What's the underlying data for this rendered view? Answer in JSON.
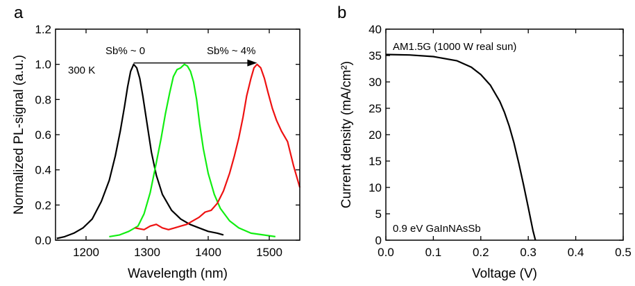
{
  "chart_data": [
    {
      "panel": "a",
      "type": "line",
      "xlabel": "Wavelength (nm)",
      "ylabel": "Normalized PL-signal (a.u.)",
      "xlim": [
        1150,
        1550
      ],
      "ylim": [
        0.0,
        1.2
      ],
      "xticks": [
        1200,
        1300,
        1400,
        1500
      ],
      "xtick_labels": [
        "1200",
        "1300",
        "1400",
        "1500"
      ],
      "yticks": [
        0.0,
        0.2,
        0.4,
        0.6,
        0.8,
        1.0,
        1.2
      ],
      "ytick_labels": [
        "0.0",
        "0.2",
        "0.4",
        "0.6",
        "0.8",
        "1.0",
        "1.2"
      ],
      "grid": false,
      "annotations": {
        "temperature": "300 K",
        "low_sb": "Sb% ~ 0",
        "high_sb": "Sb% ~ 4%"
      },
      "arrow": {
        "x": [
          1278,
          1480
        ],
        "y": 1.0
      },
      "series": [
        {
          "color": "#000000",
          "x": [
            1152,
            1165,
            1180,
            1195,
            1210,
            1225,
            1238,
            1248,
            1256,
            1263,
            1268,
            1273,
            1278,
            1283,
            1288,
            1293,
            1300,
            1307,
            1315,
            1325,
            1340,
            1355,
            1370,
            1385,
            1400,
            1415,
            1425
          ],
          "y": [
            0.01,
            0.02,
            0.04,
            0.07,
            0.12,
            0.22,
            0.34,
            0.48,
            0.62,
            0.76,
            0.87,
            0.96,
            1.0,
            0.98,
            0.92,
            0.82,
            0.66,
            0.5,
            0.37,
            0.26,
            0.17,
            0.12,
            0.09,
            0.07,
            0.05,
            0.04,
            0.03
          ]
        },
        {
          "color": "#11ee11",
          "x": [
            1238,
            1255,
            1270,
            1285,
            1295,
            1305,
            1315,
            1323,
            1330,
            1337,
            1343,
            1349,
            1355,
            1361,
            1366,
            1371,
            1376,
            1381,
            1386,
            1392,
            1400,
            1410,
            1420,
            1435,
            1450,
            1470,
            1490,
            1510
          ],
          "y": [
            0.02,
            0.03,
            0.05,
            0.08,
            0.15,
            0.27,
            0.44,
            0.58,
            0.72,
            0.84,
            0.93,
            0.97,
            0.98,
            1.0,
            0.99,
            0.96,
            0.9,
            0.8,
            0.66,
            0.52,
            0.38,
            0.26,
            0.18,
            0.11,
            0.07,
            0.04,
            0.03,
            0.02
          ]
        },
        {
          "color": "#ee1111",
          "x": [
            1280,
            1295,
            1305,
            1315,
            1325,
            1335,
            1345,
            1355,
            1365,
            1375,
            1385,
            1395,
            1405,
            1415,
            1425,
            1435,
            1443,
            1450,
            1457,
            1463,
            1470,
            1475,
            1480,
            1486,
            1492,
            1498,
            1505,
            1512,
            1520,
            1530,
            1540,
            1550
          ],
          "y": [
            0.07,
            0.06,
            0.08,
            0.09,
            0.07,
            0.06,
            0.07,
            0.08,
            0.09,
            0.11,
            0.13,
            0.16,
            0.17,
            0.21,
            0.28,
            0.38,
            0.48,
            0.58,
            0.7,
            0.82,
            0.92,
            0.98,
            1.0,
            0.98,
            0.92,
            0.84,
            0.75,
            0.68,
            0.62,
            0.56,
            0.42,
            0.3
          ]
        }
      ]
    },
    {
      "panel": "b",
      "type": "line",
      "xlabel": "Voltage (V)",
      "ylabel": "Current density (mA/cm²)",
      "xlim": [
        0.0,
        0.5
      ],
      "ylim": [
        0,
        40
      ],
      "xticks": [
        0.0,
        0.1,
        0.2,
        0.3,
        0.4,
        0.5
      ],
      "xtick_labels": [
        "0.0",
        "0.1",
        "0.2",
        "0.3",
        "0.4",
        "0.5"
      ],
      "yticks": [
        0,
        5,
        10,
        15,
        20,
        25,
        30,
        35,
        40
      ],
      "ytick_labels": [
        "0",
        "5",
        "10",
        "15",
        "20",
        "25",
        "30",
        "35",
        "40"
      ],
      "grid": false,
      "annotations": {
        "illumination": "AM1.5G (1000 W real sun)",
        "device": "0.9 eV GaInNAsSb"
      },
      "series": [
        {
          "color": "#000000",
          "x": [
            0.0,
            0.05,
            0.1,
            0.15,
            0.18,
            0.2,
            0.22,
            0.24,
            0.25,
            0.26,
            0.27,
            0.28,
            0.29,
            0.3,
            0.305,
            0.31,
            0.315
          ],
          "y": [
            35.2,
            35.1,
            34.8,
            34.0,
            32.8,
            31.4,
            29.4,
            26.3,
            24.2,
            21.6,
            18.4,
            14.6,
            10.5,
            6.2,
            4.0,
            1.8,
            0.0
          ]
        }
      ]
    }
  ]
}
